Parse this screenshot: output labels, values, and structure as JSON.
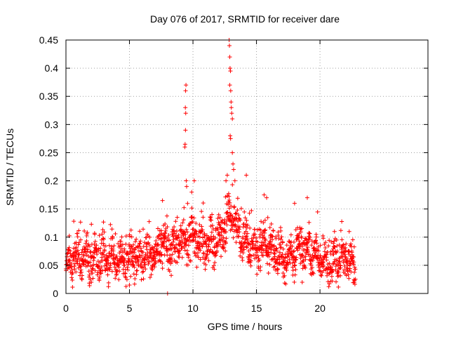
{
  "chart_data": {
    "type": "scatter",
    "title": "Day 076 of 2017, SRMTID for receiver dare",
    "xlabel": "GPS time / hours",
    "ylabel": "SRMTID / TECUs",
    "xlim": [
      0,
      28.5
    ],
    "ylim": [
      0,
      0.45
    ],
    "xticks": [
      0,
      5,
      10,
      15,
      20
    ],
    "xtick_labels": [
      "0",
      "5",
      "10",
      "15",
      "20"
    ],
    "yticks": [
      0,
      0.05,
      0.1,
      0.15,
      0.2,
      0.25,
      0.3,
      0.35,
      0.4,
      0.45
    ],
    "ytick_labels": [
      "0",
      "0.05",
      "0.1",
      "0.15",
      "0.2",
      "0.25",
      "0.3",
      "0.35",
      "0.4",
      "0.45"
    ],
    "grid": true,
    "marker": "+",
    "series": [
      {
        "name": "SRMTID",
        "color": "#ff0000",
        "baseline": [
          [
            0.0,
            0.055
          ],
          [
            1.0,
            0.07
          ],
          [
            2.0,
            0.06
          ],
          [
            3.0,
            0.06
          ],
          [
            4.0,
            0.065
          ],
          [
            5.0,
            0.06
          ],
          [
            6.0,
            0.07
          ],
          [
            7.0,
            0.06
          ],
          [
            7.5,
            0.09
          ],
          [
            8.0,
            0.08
          ],
          [
            9.0,
            0.09
          ],
          [
            10.0,
            0.1
          ],
          [
            11.0,
            0.08
          ],
          [
            12.0,
            0.09
          ],
          [
            12.8,
            0.14
          ],
          [
            13.2,
            0.13
          ],
          [
            14.0,
            0.09
          ],
          [
            15.0,
            0.08
          ],
          [
            16.0,
            0.09
          ],
          [
            17.0,
            0.06
          ],
          [
            18.0,
            0.07
          ],
          [
            19.0,
            0.08
          ],
          [
            20.0,
            0.06
          ],
          [
            21.0,
            0.055
          ],
          [
            22.0,
            0.06
          ],
          [
            22.8,
            0.045
          ]
        ],
        "peaks": [
          [
            9.45,
            0.37
          ],
          [
            9.42,
            0.36
          ],
          [
            9.4,
            0.33
          ],
          [
            9.43,
            0.32
          ],
          [
            9.41,
            0.29
          ],
          [
            9.38,
            0.265
          ],
          [
            9.36,
            0.26
          ],
          [
            9.47,
            0.2
          ],
          [
            9.5,
            0.19
          ],
          [
            12.85,
            0.45
          ],
          [
            12.87,
            0.44
          ],
          [
            12.9,
            0.42
          ],
          [
            12.92,
            0.4
          ],
          [
            12.95,
            0.395
          ],
          [
            12.9,
            0.37
          ],
          [
            12.97,
            0.36
          ],
          [
            13.0,
            0.34
          ],
          [
            13.02,
            0.33
          ],
          [
            13.05,
            0.32
          ],
          [
            13.1,
            0.31
          ],
          [
            12.93,
            0.28
          ],
          [
            12.96,
            0.275
          ],
          [
            13.1,
            0.25
          ],
          [
            13.15,
            0.23
          ],
          [
            13.2,
            0.22
          ],
          [
            12.7,
            0.21
          ],
          [
            13.3,
            0.2
          ],
          [
            12.6,
            0.2
          ],
          [
            14.2,
            0.21
          ],
          [
            10.1,
            0.2
          ],
          [
            9.9,
            0.18
          ],
          [
            7.6,
            0.165
          ],
          [
            15.8,
            0.17
          ],
          [
            15.6,
            0.175
          ],
          [
            19.0,
            0.17
          ],
          [
            18.0,
            0.16
          ],
          [
            22.3,
            0.11
          ]
        ],
        "lows": [
          [
            8.0,
            0.0
          ],
          [
            5.0,
            0.015
          ],
          [
            22.7,
            0.02
          ],
          [
            18.6,
            0.02
          ],
          [
            2.0,
            0.02
          ]
        ]
      }
    ]
  }
}
